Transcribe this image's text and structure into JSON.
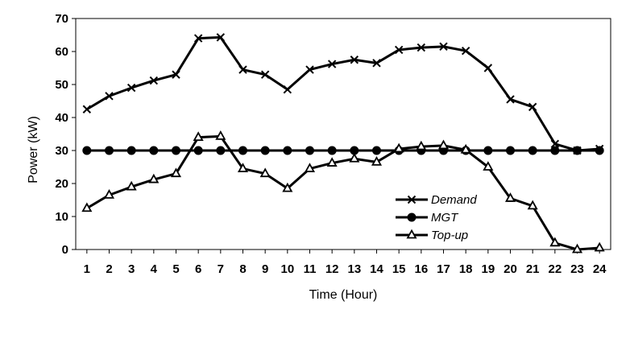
{
  "chart_data": {
    "type": "line",
    "title": "",
    "xlabel": "Time (Hour)",
    "ylabel": "Power (kW)",
    "x": [
      1,
      2,
      3,
      4,
      5,
      6,
      7,
      8,
      9,
      10,
      11,
      12,
      13,
      14,
      15,
      16,
      17,
      18,
      19,
      20,
      21,
      22,
      23,
      24
    ],
    "xlim": [
      0.5,
      24.5
    ],
    "ylim": [
      0,
      70
    ],
    "yticks": [
      0,
      10,
      20,
      30,
      40,
      50,
      60,
      70
    ],
    "grid": false,
    "legend_position": "bottom-right",
    "series": [
      {
        "name": "Demand",
        "marker": "cross",
        "values": [
          42.5,
          46.5,
          49,
          51.2,
          53,
          64,
          64.3,
          54.5,
          53,
          48.5,
          54.5,
          56.2,
          57.5,
          56.5,
          60.5,
          61.2,
          61.5,
          60.2,
          55,
          45.5,
          43.2,
          32,
          30,
          30.5
        ]
      },
      {
        "name": "MGT",
        "marker": "circle",
        "values": [
          30,
          30,
          30,
          30,
          30,
          30,
          30,
          30,
          30,
          30,
          30,
          30,
          30,
          30,
          30,
          30,
          30,
          30,
          30,
          30,
          30,
          30,
          30,
          30
        ]
      },
      {
        "name": "Top-up",
        "marker": "triangle",
        "values": [
          12.5,
          16.5,
          19,
          21.2,
          23,
          34,
          34.3,
          24.5,
          23,
          18.5,
          24.5,
          26.2,
          27.5,
          26.5,
          30.5,
          31.2,
          31.5,
          30.2,
          25,
          15.5,
          13.2,
          2,
          0,
          0.5
        ]
      }
    ],
    "color": "#000000"
  }
}
